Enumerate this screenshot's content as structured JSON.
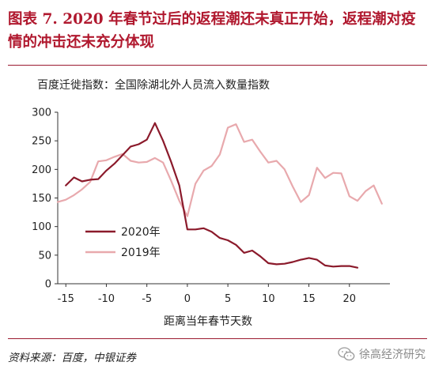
{
  "header": {
    "title": "图表 7. 2020 年春节过后的返程潮还未真正开始，返程潮对疫情的冲击还未充分体现",
    "subtitle": "百度迁徙指数：全国除湖北外人员流入数量指数"
  },
  "footer": {
    "source": "资料来源：百度，中银证券",
    "watermark": "徐高经济研究",
    "watermark_icon": "wechat-icon"
  },
  "colors": {
    "accent": "#b0182e",
    "series_2020": "#8b1a2b",
    "series_2019": "#e8a9ad"
  },
  "chart_data": {
    "type": "line",
    "title": "百度迁徙指数：全国除湖北外人员流入数量指数",
    "xlabel": "距离当年春节天数",
    "ylabel": "",
    "xlim": [
      -16,
      25
    ],
    "ylim": [
      0,
      300
    ],
    "xticks": [
      -15,
      -10,
      -5,
      0,
      5,
      10,
      15,
      20
    ],
    "yticks": [
      0,
      50,
      100,
      150,
      200,
      250,
      300
    ],
    "grid": false,
    "legend_position": "left-bottom",
    "series": [
      {
        "name": "2020年",
        "color": "#8b1a2b",
        "x": [
          -15,
          -14,
          -13,
          -12,
          -11,
          -10,
          -9,
          -8,
          -7,
          -6,
          -5,
          -4,
          -3,
          -2,
          -1,
          0,
          1,
          2,
          3,
          4,
          5,
          6,
          7,
          8,
          9,
          10,
          11,
          12,
          13,
          14,
          15,
          16,
          17,
          18,
          19,
          20,
          21
        ],
        "y": [
          172,
          186,
          179,
          182,
          183,
          198,
          210,
          225,
          240,
          244,
          252,
          281,
          250,
          213,
          172,
          95,
          95,
          97,
          91,
          80,
          76,
          68,
          54,
          58,
          48,
          36,
          34,
          35,
          38,
          42,
          45,
          42,
          32,
          30,
          31,
          31,
          28
        ]
      },
      {
        "name": "2019年",
        "color": "#e8a9ad",
        "x": [
          -16,
          -15,
          -14,
          -13,
          -12,
          -11,
          -10,
          -9,
          -8,
          -7,
          -6,
          -5,
          -4,
          -3,
          -2,
          -1,
          0,
          1,
          2,
          3,
          4,
          5,
          6,
          7,
          8,
          9,
          10,
          11,
          12,
          13,
          14,
          15,
          16,
          17,
          18,
          19,
          20,
          21,
          22,
          23,
          24
        ],
        "y": [
          143,
          147,
          155,
          165,
          178,
          214,
          216,
          222,
          227,
          215,
          212,
          213,
          220,
          212,
          180,
          145,
          118,
          175,
          198,
          206,
          226,
          273,
          279,
          248,
          252,
          231,
          212,
          215,
          200,
          170,
          143,
          155,
          203,
          185,
          194,
          193,
          153,
          145,
          162,
          172,
          140
        ]
      }
    ]
  }
}
